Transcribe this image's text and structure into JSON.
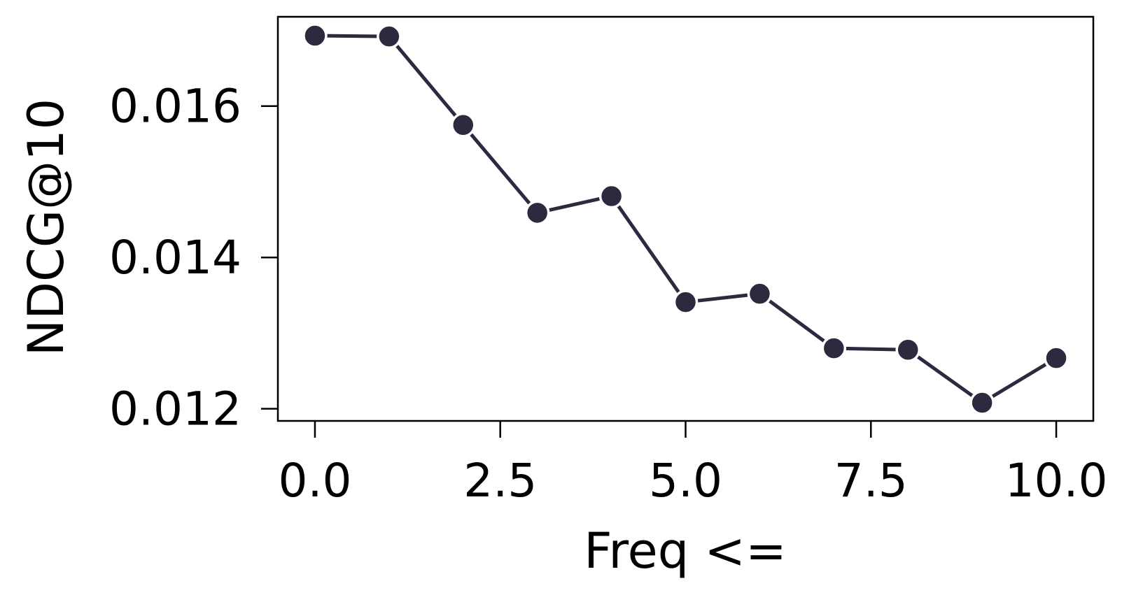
{
  "chart_data": {
    "type": "line",
    "title": "",
    "xlabel": "Freq <=",
    "ylabel": "NDCG@10",
    "x": [
      0,
      1,
      2,
      3,
      4,
      5,
      6,
      7,
      8,
      9,
      10
    ],
    "series": [
      {
        "values": [
          0.01693,
          0.01692,
          0.01575,
          0.01459,
          0.01481,
          0.01341,
          0.01352,
          0.0128,
          0.01278,
          0.01208,
          0.01267
        ]
      }
    ],
    "xlim": [
      -0.5,
      10.5
    ],
    "ylim": [
      0.01184,
      0.01718
    ],
    "xticks": [
      0.0,
      2.5,
      5.0,
      7.5,
      10.0
    ],
    "xtick_labels": [
      "0.0",
      "2.5",
      "5.0",
      "7.5",
      "10.0"
    ],
    "yticks": [
      0.012,
      0.014,
      0.016
    ],
    "ytick_labels": [
      "0.012",
      "0.014",
      "0.016"
    ],
    "grid": false,
    "legend": "none",
    "colors": {
      "line": "#2b2a3f",
      "marker": "#2b2a3f",
      "marker_edge": "#ffffff",
      "axes": "#000000"
    }
  }
}
